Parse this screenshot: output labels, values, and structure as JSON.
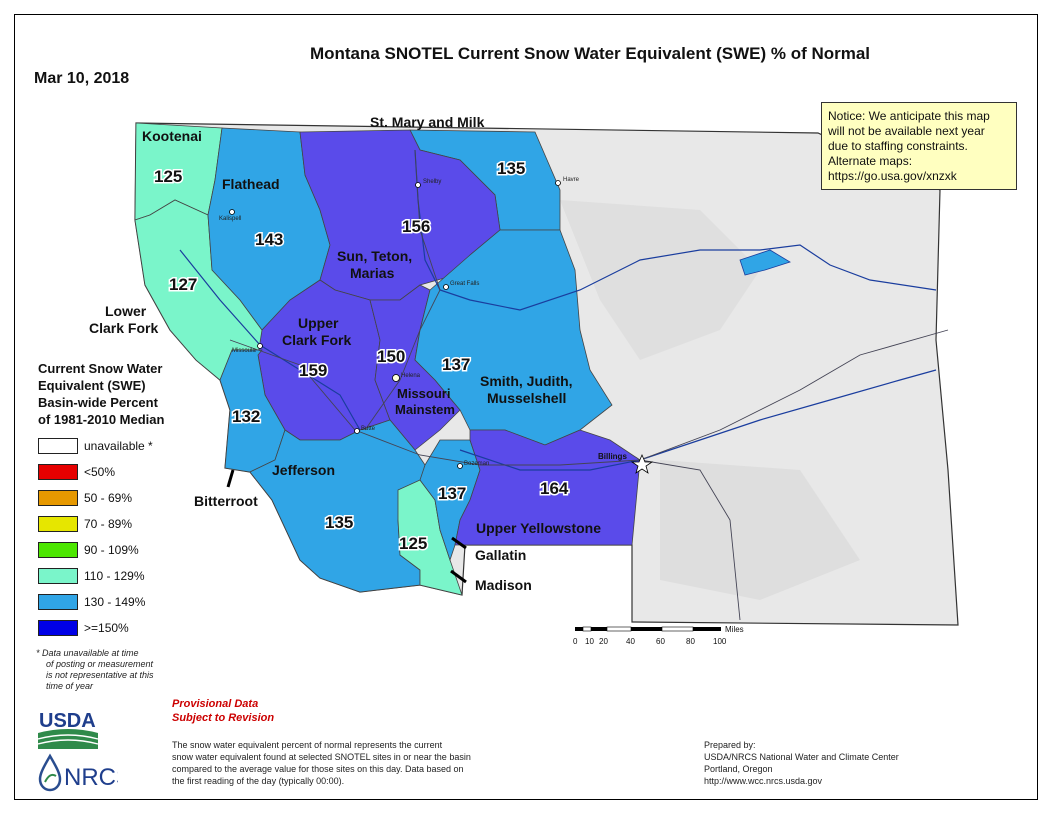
{
  "title": "Montana SNOTEL Current Snow Water Equivalent (SWE) % of Normal",
  "date": "Mar 10, 2018",
  "notice": [
    "Notice: We anticipate this map",
    "will not be available next year",
    "due to staffing constraints.",
    "Alternate maps:",
    "https://go.usa.gov/xnzxk"
  ],
  "legend": {
    "title": [
      "Current Snow Water",
      "Equivalent (SWE)",
      "Basin-wide Percent",
      "of 1981-2010 Median"
    ],
    "items": [
      {
        "label": "unavailable *",
        "color": "#ffffff"
      },
      {
        "label": "<50%",
        "color": "#e60000"
      },
      {
        "label": "50 - 69%",
        "color": "#e69800"
      },
      {
        "label": "70 - 89%",
        "color": "#e6e600"
      },
      {
        "label": "90 - 109%",
        "color": "#4ce600"
      },
      {
        "label": "110 - 129%",
        "color": "#7af5ca"
      },
      {
        "label": "130 - 149%",
        "color": "#30a5e6"
      },
      {
        "label": ">=150%",
        "color": "#0000e6"
      }
    ],
    "footnote": [
      "*  Data unavailable at time",
      "of posting or measurement",
      "is not representative at this",
      "time of year"
    ]
  },
  "basins": [
    {
      "name": "Kootenai",
      "value": "125",
      "color": "#7af5ca"
    },
    {
      "name": "Flathead",
      "value": "143",
      "color": "#30a5e6"
    },
    {
      "name": "St. Mary and Milk",
      "value": "135",
      "color": "#30a5e6"
    },
    {
      "name": "Sun, Teton, Marias",
      "value": "156",
      "color": "#0000e6"
    },
    {
      "name": "Lower Clark Fork",
      "value": "127",
      "color": "#7af5ca"
    },
    {
      "name": "Upper Clark Fork",
      "value": "159",
      "color": "#0000e6"
    },
    {
      "name": "Missouri Mainstem",
      "value": "150",
      "color": "#0000e6"
    },
    {
      "name": "Smith, Judith, Musselshell",
      "value": "137",
      "color": "#30a5e6"
    },
    {
      "name": "Bitterroot",
      "value": "132",
      "color": "#30a5e6"
    },
    {
      "name": "Jefferson",
      "value": "135",
      "color": "#30a5e6"
    },
    {
      "name": "Gallatin",
      "value": "137",
      "color": "#30a5e6"
    },
    {
      "name": "Madison",
      "value": "125",
      "color": "#7af5ca"
    },
    {
      "name": "Upper Yellowstone",
      "value": "164",
      "color": "#0000e6"
    }
  ],
  "label_text": {
    "kootenai": "Kootenai",
    "flathead": "Flathead",
    "stmary": "St. Mary and Milk",
    "sun1": "Sun, Teton,",
    "sun2": "Marias",
    "lcf1": "Lower",
    "lcf2": "Clark Fork",
    "ucf1": "Upper",
    "ucf2": "Clark Fork",
    "miss1": "Missouri",
    "miss2": "Mainstem",
    "smith1": "Smith, Judith,",
    "smith2": "Musselshell",
    "bitterroot": "Bitterroot",
    "jefferson": "Jefferson",
    "gallatin": "Gallatin",
    "madison": "Madison",
    "upperyellowstone": "Upper Yellowstone"
  },
  "cities": {
    "havre": "Havre",
    "shelby": "Shelby",
    "kalispell": "Kalispell",
    "greatfalls": "Great Falls",
    "missoula": "Missoula",
    "helena": "Helena",
    "butte": "Butte",
    "bozeman": "Bozeman",
    "billings": "Billings"
  },
  "scale": {
    "unit": "Miles",
    "ticks": [
      "0",
      "10",
      "20",
      "40",
      "60",
      "80",
      "100"
    ]
  },
  "provisional": [
    "Provisional Data",
    "Subject to Revision"
  ],
  "explanation": [
    "The snow water equivalent percent of normal represents the current",
    "snow water equivalent found at selected SNOTEL sites in or near the basin",
    "compared to the average value for those sites on this day. Data based on",
    "the first reading of the day (typically 00:00)."
  ],
  "prepared": [
    "Prepared by:",
    "USDA/NRCS National Water and Climate Center",
    "Portland, Oregon",
    "http://www.wcc.nrcs.usda.gov"
  ],
  "logos": {
    "usda": "USDA",
    "nrcs": "NRCS"
  }
}
